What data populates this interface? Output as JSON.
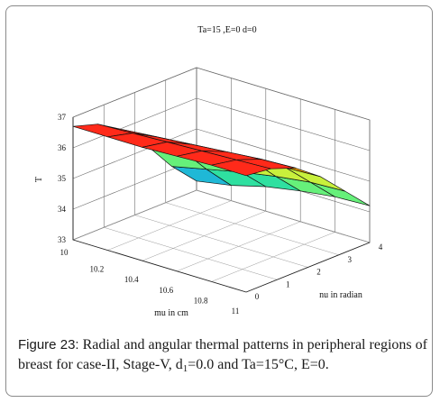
{
  "chart_data": {
    "type": "surface",
    "title": "Ta=15 ,E=0 d=0",
    "xlabel": "mu in cm",
    "ylabel": "nu in radian",
    "zlabel": "T",
    "x_ticks": [
      "10",
      "10.2",
      "10.4",
      "10.6",
      "10.8",
      "11"
    ],
    "y_ticks": [
      "0",
      "1",
      "2",
      "3",
      "4"
    ],
    "z_ticks": [
      "33",
      "34",
      "35",
      "36",
      "37"
    ],
    "xlim": [
      10,
      11
    ],
    "ylim": [
      0,
      4
    ],
    "zlim": [
      33,
      37
    ],
    "grid": true,
    "x": [
      10.0,
      10.2,
      10.4,
      10.6,
      10.8,
      11.0
    ],
    "y": [
      0,
      0.8,
      1.6,
      2.4,
      3.2,
      4.0
    ],
    "z": [
      [
        36.7,
        36.7,
        36.7,
        36.75,
        36.8,
        36.8
      ],
      [
        36.45,
        36.5,
        36.55,
        36.6,
        36.65,
        36.7
      ],
      [
        35.95,
        36.05,
        36.15,
        36.25,
        36.35,
        36.4
      ],
      [
        35.1,
        35.3,
        35.5,
        35.65,
        35.75,
        35.8
      ],
      [
        34.1,
        34.35,
        34.6,
        34.8,
        34.95,
        35.0
      ],
      [
        33.3,
        33.5,
        33.8,
        34.0,
        34.15,
        34.2
      ]
    ],
    "colormap": [
      "#1fb8d6",
      "#2fe0a0",
      "#66f07a",
      "#c8f03c",
      "#ffa800",
      "#ff2a1a"
    ]
  },
  "caption": {
    "label": "Figure 23:",
    "text_before_sub": " Radial and angular thermal patterns in peripheral regions of breast for case-II, Stage-V, d",
    "sub": "1",
    "text_after_sub": "=0.0 and Ta=15°C, E=0."
  }
}
